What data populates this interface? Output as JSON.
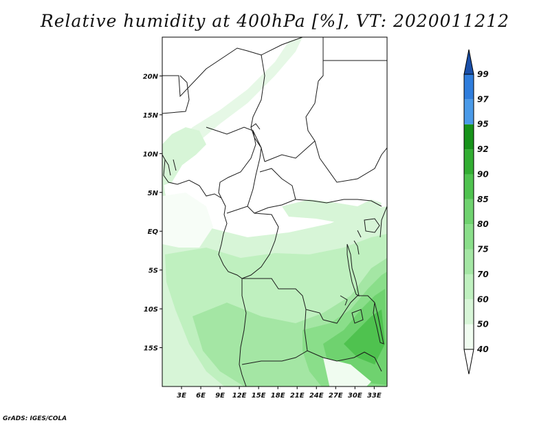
{
  "title": "Relative humidity at 400hPa [%], VT: 2020011212",
  "credit": "GrADS: IGES/COLA",
  "map": {
    "lon_range": [
      0,
      35
    ],
    "lat_range": [
      -20,
      25
    ],
    "lon_ticks": [
      {
        "value": 3,
        "label": "3E"
      },
      {
        "value": 6,
        "label": "6E"
      },
      {
        "value": 9,
        "label": "9E"
      },
      {
        "value": 12,
        "label": "12E"
      },
      {
        "value": 15,
        "label": "15E"
      },
      {
        "value": 18,
        "label": "18E"
      },
      {
        "value": 21,
        "label": "21E"
      },
      {
        "value": 24,
        "label": "24E"
      },
      {
        "value": 27,
        "label": "27E"
      },
      {
        "value": 30,
        "label": "30E"
      },
      {
        "value": 33,
        "label": "33E"
      }
    ],
    "lat_ticks": [
      {
        "value": 20,
        "label": "20N"
      },
      {
        "value": 15,
        "label": "15N"
      },
      {
        "value": 10,
        "label": "10N"
      },
      {
        "value": 5,
        "label": "5N"
      },
      {
        "value": 0,
        "label": "EQ"
      },
      {
        "value": -5,
        "label": "5S"
      },
      {
        "value": -10,
        "label": "10S"
      },
      {
        "value": -15,
        "label": "15S"
      }
    ]
  },
  "colorbar": {
    "levels": [
      "40",
      "50",
      "60",
      "70",
      "75",
      "80",
      "85",
      "90",
      "92",
      "95",
      "97",
      "99"
    ],
    "colors": [
      "#f0fcf0",
      "#d7f5d7",
      "#bff0bf",
      "#a4e6a4",
      "#8ade8a",
      "#6fd26f",
      "#4fc24f",
      "#32ad32",
      "#17921a",
      "#4a9ae8",
      "#2f7ddc",
      "#1f5fbf"
    ],
    "below_color": "#ffffff",
    "above_color": "#1a4fa8"
  }
}
